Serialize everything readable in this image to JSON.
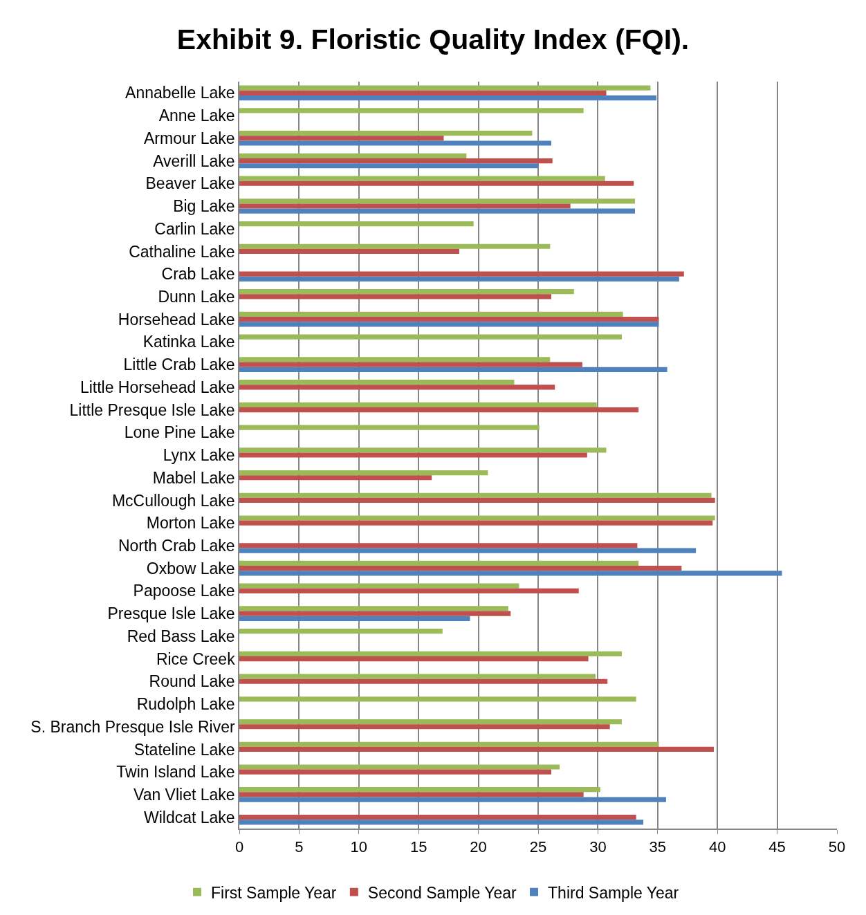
{
  "chart_data": {
    "type": "bar",
    "orientation": "horizontal",
    "title": "Exhibit 9. Floristic Quality Index (FQI).",
    "categories": [
      "Annabelle Lake",
      "Anne Lake",
      "Armour Lake",
      "Averill Lake",
      "Beaver Lake",
      "Big Lake",
      "Carlin Lake",
      "Cathaline Lake",
      "Crab Lake",
      "Dunn Lake",
      "Horsehead Lake",
      "Katinka Lake",
      "Little Crab Lake",
      "Little Horsehead Lake",
      "Little Presque Isle Lake",
      "Lone Pine Lake",
      "Lynx Lake",
      "Mabel Lake",
      "McCullough Lake",
      "Morton Lake",
      "North Crab Lake",
      "Oxbow Lake",
      "Papoose Lake",
      "Presque Isle Lake",
      "Red Bass Lake",
      "Rice Creek",
      "Round Lake",
      "Rudolph Lake",
      "S. Branch Presque Isle River",
      "Stateline Lake",
      "Twin Island Lake",
      "Van Vliet Lake",
      "Wildcat Lake"
    ],
    "series": [
      {
        "name": "First Sample Year",
        "color": "#9bbb59",
        "values": [
          34.4,
          28.8,
          24.5,
          19.0,
          30.6,
          33.1,
          19.6,
          26.0,
          null,
          28.0,
          32.1,
          32.0,
          26.0,
          23.0,
          29.9,
          25.1,
          30.7,
          20.8,
          39.5,
          39.8,
          null,
          33.4,
          23.4,
          22.5,
          17.0,
          32.0,
          29.8,
          33.2,
          32.0,
          35.1,
          26.8,
          30.2,
          null
        ]
      },
      {
        "name": "Second Sample Year",
        "color": "#c0504d",
        "values": [
          30.7,
          null,
          17.1,
          26.2,
          33.0,
          27.7,
          null,
          18.4,
          37.2,
          26.1,
          35.1,
          null,
          28.7,
          26.4,
          33.4,
          null,
          29.1,
          16.1,
          39.8,
          39.6,
          33.3,
          37.0,
          28.4,
          22.7,
          null,
          29.2,
          30.8,
          null,
          31.0,
          39.7,
          26.1,
          28.8,
          33.2
        ]
      },
      {
        "name": "Third Sample Year",
        "color": "#4f81bd",
        "values": [
          34.9,
          null,
          26.1,
          25.0,
          null,
          33.1,
          null,
          null,
          36.8,
          null,
          35.1,
          null,
          35.8,
          null,
          null,
          null,
          null,
          null,
          null,
          null,
          38.2,
          45.4,
          null,
          19.3,
          null,
          null,
          null,
          null,
          null,
          null,
          null,
          35.7,
          33.8
        ]
      }
    ],
    "xlim": [
      0,
      50
    ],
    "xticks": [
      0,
      5,
      10,
      15,
      20,
      25,
      30,
      35,
      40,
      45,
      50
    ],
    "grid": "x",
    "legend": "bottom"
  }
}
